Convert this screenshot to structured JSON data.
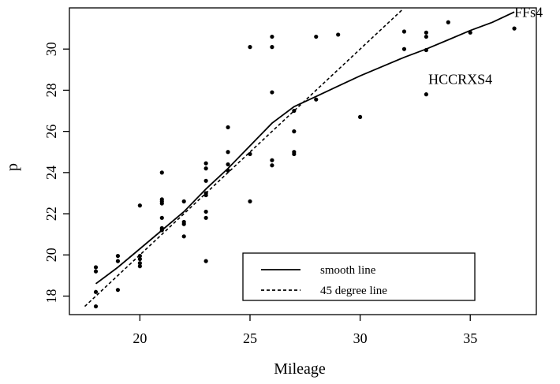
{
  "chart_data": {
    "type": "scatter",
    "title": "",
    "xlabel": "Mileage",
    "ylabel": "p",
    "xlim": [
      16.8,
      38.0
    ],
    "ylim": [
      17.1,
      32.0
    ],
    "x_ticks": [
      20,
      25,
      30,
      35
    ],
    "x_tick_labels": [
      "20",
      "25",
      "30",
      "35"
    ],
    "y_ticks": [
      18,
      20,
      22,
      24,
      26,
      28,
      30
    ],
    "y_tick_labels": [
      "18",
      "20",
      "22",
      "24",
      "26",
      "28",
      "30"
    ],
    "grid": false,
    "legend_position": "bottom-right",
    "legend": [
      {
        "label": "smooth line",
        "style": "solid"
      },
      {
        "label": "45 degree line",
        "style": "dashed"
      }
    ],
    "points": [
      {
        "x": 18,
        "y": 17.5
      },
      {
        "x": 18,
        "y": 18.2
      },
      {
        "x": 18,
        "y": 19.2
      },
      {
        "x": 18,
        "y": 19.4
      },
      {
        "x": 19,
        "y": 18.3
      },
      {
        "x": 19,
        "y": 19.7
      },
      {
        "x": 19,
        "y": 19.95
      },
      {
        "x": 20,
        "y": 19.45
      },
      {
        "x": 20,
        "y": 19.6
      },
      {
        "x": 20,
        "y": 19.8
      },
      {
        "x": 20,
        "y": 19.95
      },
      {
        "x": 20,
        "y": 22.4
      },
      {
        "x": 21,
        "y": 21.2
      },
      {
        "x": 21,
        "y": 21.3
      },
      {
        "x": 21,
        "y": 21.8
      },
      {
        "x": 21,
        "y": 22.5
      },
      {
        "x": 21,
        "y": 22.6
      },
      {
        "x": 21,
        "y": 22.7
      },
      {
        "x": 21,
        "y": 24.0
      },
      {
        "x": 22,
        "y": 20.9
      },
      {
        "x": 22,
        "y": 21.5
      },
      {
        "x": 22,
        "y": 21.6
      },
      {
        "x": 22,
        "y": 22.6
      },
      {
        "x": 23,
        "y": 19.7
      },
      {
        "x": 23,
        "y": 21.8
      },
      {
        "x": 23,
        "y": 22.1
      },
      {
        "x": 23,
        "y": 22.9
      },
      {
        "x": 23,
        "y": 23.0
      },
      {
        "x": 23,
        "y": 23.6
      },
      {
        "x": 23,
        "y": 24.2
      },
      {
        "x": 23,
        "y": 24.45
      },
      {
        "x": 24,
        "y": 24.1
      },
      {
        "x": 24,
        "y": 24.4
      },
      {
        "x": 24,
        "y": 25.0
      },
      {
        "x": 24,
        "y": 26.2
      },
      {
        "x": 25,
        "y": 22.6
      },
      {
        "x": 25,
        "y": 24.9
      },
      {
        "x": 25,
        "y": 30.1
      },
      {
        "x": 26,
        "y": 24.35
      },
      {
        "x": 26,
        "y": 24.6
      },
      {
        "x": 26,
        "y": 27.9
      },
      {
        "x": 26,
        "y": 30.1
      },
      {
        "x": 26,
        "y": 30.6
      },
      {
        "x": 27,
        "y": 24.9
      },
      {
        "x": 27,
        "y": 25.0
      },
      {
        "x": 27,
        "y": 26.0
      },
      {
        "x": 27,
        "y": 27.0
      },
      {
        "x": 28,
        "y": 27.55
      },
      {
        "x": 28,
        "y": 30.6
      },
      {
        "x": 29,
        "y": 30.7
      },
      {
        "x": 30,
        "y": 26.7
      },
      {
        "x": 32,
        "y": 30.0
      },
      {
        "x": 32,
        "y": 30.85
      },
      {
        "x": 33,
        "y": 27.8
      },
      {
        "x": 33,
        "y": 29.95
      },
      {
        "x": 33,
        "y": 30.6
      },
      {
        "x": 33,
        "y": 30.8
      },
      {
        "x": 34,
        "y": 31.3
      },
      {
        "x": 35,
        "y": 30.8
      },
      {
        "x": 37,
        "y": 31.0
      }
    ],
    "smooth_line": [
      {
        "x": 18,
        "y": 18.6
      },
      {
        "x": 19,
        "y": 19.4
      },
      {
        "x": 20,
        "y": 20.3
      },
      {
        "x": 21,
        "y": 21.2
      },
      {
        "x": 22,
        "y": 22.1
      },
      {
        "x": 23,
        "y": 23.2
      },
      {
        "x": 24,
        "y": 24.2
      },
      {
        "x": 25,
        "y": 25.3
      },
      {
        "x": 26,
        "y": 26.4
      },
      {
        "x": 27,
        "y": 27.2
      },
      {
        "x": 28,
        "y": 27.7
      },
      {
        "x": 29,
        "y": 28.2
      },
      {
        "x": 30,
        "y": 28.7
      },
      {
        "x": 31,
        "y": 29.15
      },
      {
        "x": 32,
        "y": 29.6
      },
      {
        "x": 33,
        "y": 30.0
      },
      {
        "x": 34,
        "y": 30.45
      },
      {
        "x": 35,
        "y": 30.9
      },
      {
        "x": 36,
        "y": 31.3
      },
      {
        "x": 37,
        "y": 31.8
      }
    ],
    "reference_line": [
      {
        "x": 17.5,
        "y": 17.5
      },
      {
        "x": 31.9,
        "y": 31.9
      }
    ],
    "annotations": [
      {
        "text": "FFs4",
        "x": 37.0,
        "y": 31.55
      },
      {
        "text": "HCCRXS4",
        "x": 33.1,
        "y": 28.3
      }
    ]
  }
}
